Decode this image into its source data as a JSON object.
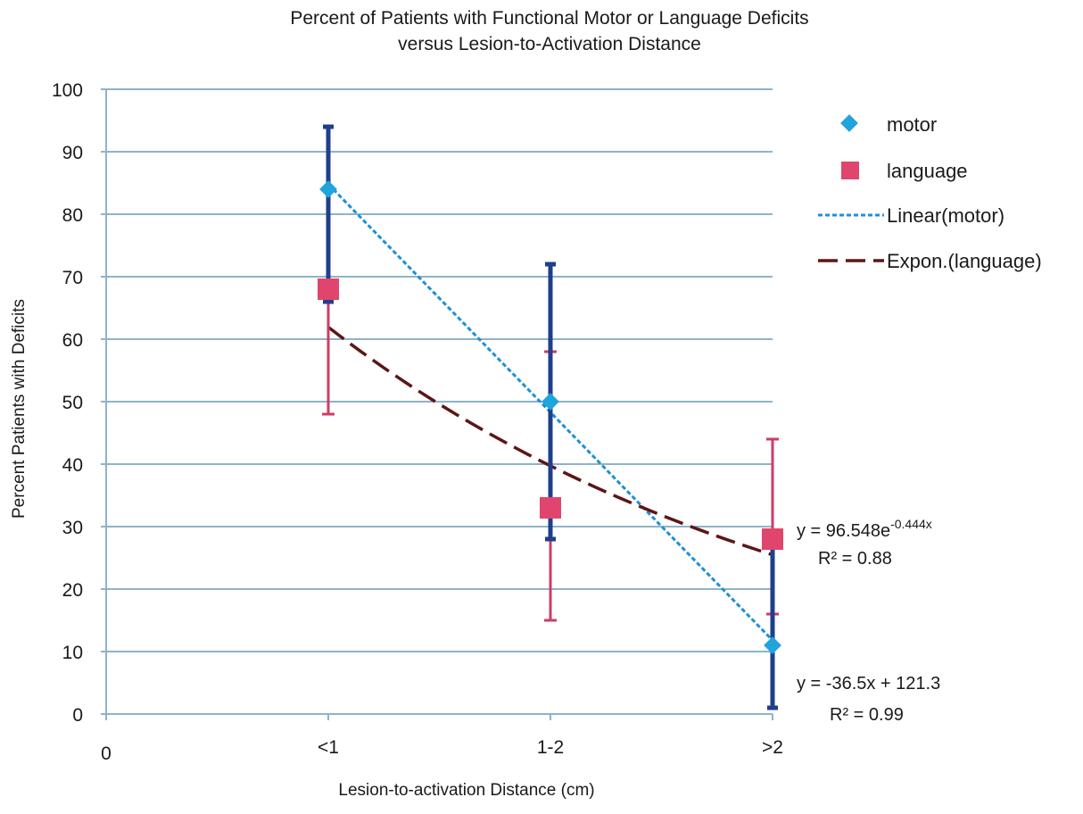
{
  "chart_data": {
    "type": "scatter",
    "title_lines": [
      "Percent of Patients with Functional Motor or Language Deficits",
      "versus Lesion-to-Activation Distance"
    ],
    "xlabel": "Lesion-to-activation Distance (cm)",
    "ylabel": "Percent Patients with Deficits",
    "x_tick_labels": [
      "0",
      "<1",
      "1-2",
      ">2"
    ],
    "x_positions": [
      0,
      1,
      2,
      3
    ],
    "ylim": [
      0,
      100
    ],
    "y_ticks": [
      0,
      10,
      20,
      30,
      40,
      50,
      60,
      70,
      80,
      90,
      100
    ],
    "grid": "horizontal",
    "legend_position": "right",
    "series": [
      {
        "name": "motor",
        "marker": "diamond",
        "color": "#1fa4dc",
        "error_bar_color": "#1f3f8c",
        "points": [
          {
            "x": 1,
            "y": 84,
            "err_low": 66,
            "err_high": 94
          },
          {
            "x": 2,
            "y": 50,
            "err_low": 28,
            "err_high": 72
          },
          {
            "x": 3,
            "y": 11,
            "err_low": 1,
            "err_high": 28
          }
        ]
      },
      {
        "name": "language",
        "marker": "square",
        "color": "#e0456e",
        "error_bar_color": "#cc3d66",
        "points": [
          {
            "x": 1,
            "y": 68,
            "err_low": 48,
            "err_high": 84
          },
          {
            "x": 2,
            "y": 33,
            "err_low": 15,
            "err_high": 58
          },
          {
            "x": 3,
            "y": 28,
            "err_low": 16,
            "err_high": 44
          }
        ]
      }
    ],
    "trendlines": [
      {
        "name": "Linear(motor)",
        "kind": "linear",
        "slope": -36.5,
        "intercept": 121.3,
        "color": "#1f8fd6",
        "equation": "y = -36.5x + 121.3",
        "r2": "R² = 0.99"
      },
      {
        "name": "Expon.(language)",
        "kind": "exponential",
        "a": 96.548,
        "b": -0.444,
        "color": "#5c1616",
        "equation_prefix": "y = 96.548e",
        "equation_exponent": "-0.444x",
        "r2": "R² = 0.88"
      }
    ]
  }
}
